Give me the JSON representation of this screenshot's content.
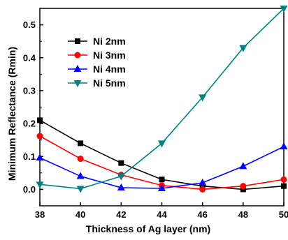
{
  "chart_data": {
    "type": "line",
    "title": "",
    "xlabel": "Thickness of Ag layer (nm)",
    "ylabel": "Minimum Reflectance (Rmin)",
    "x": [
      38,
      40,
      42,
      44,
      46,
      48,
      50
    ],
    "xlim": [
      38,
      50
    ],
    "ylim": [
      -0.05,
      0.55
    ],
    "xticks": [
      "38",
      "40",
      "42",
      "44",
      "46",
      "48",
      "50"
    ],
    "yticks": [
      "0.0",
      "0.1",
      "0.2",
      "0.3",
      "0.4",
      "0.5"
    ],
    "grid": false,
    "legend_position": "top-left",
    "series": [
      {
        "name": "Ni 2nm",
        "color": "#000000",
        "marker": "square",
        "values": [
          0.21,
          0.14,
          0.08,
          0.03,
          0.01,
          0.0,
          0.01
        ]
      },
      {
        "name": "Ni 3nm",
        "color": "#ff0000",
        "marker": "circle",
        "values": [
          0.162,
          0.093,
          0.044,
          0.012,
          0.0,
          0.01,
          0.03
        ]
      },
      {
        "name": "Ni 4nm",
        "color": "#0000ff",
        "marker": "triangle-up",
        "values": [
          0.096,
          0.04,
          0.005,
          0.003,
          0.02,
          0.07,
          0.13
        ]
      },
      {
        "name": "Ni 5nm",
        "color": "#008080",
        "marker": "triangle-down",
        "values": [
          0.015,
          0.002,
          0.04,
          0.14,
          0.28,
          0.43,
          0.55
        ]
      }
    ]
  }
}
